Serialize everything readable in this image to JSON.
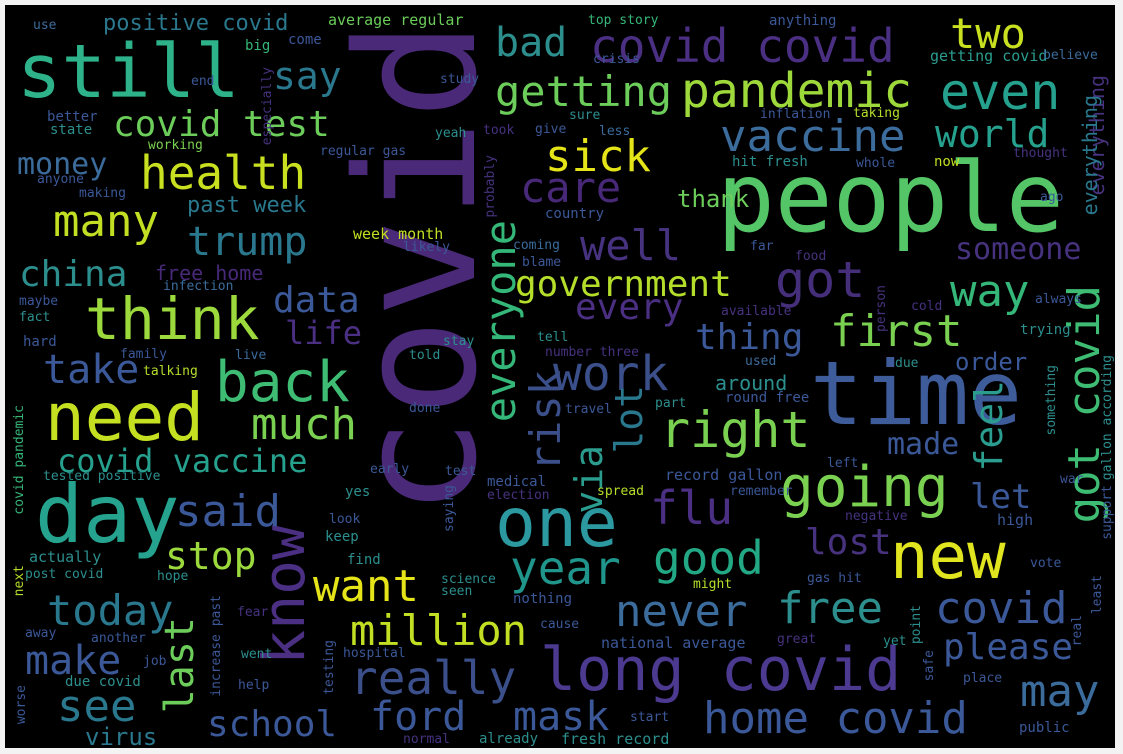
{
  "colors": {
    "background": "#000000",
    "purple_dark": "#46266b",
    "purple": "#5b3b8b",
    "indigo": "#3f4e8c",
    "slate": "#3b6c8f",
    "teal": "#2c8f8e",
    "green_teal": "#27a27e",
    "green": "#48c06a",
    "light_green": "#7ed34e",
    "yellow": "#d8e219"
  },
  "words": [
    {
      "text": "covid",
      "color": "#4a2a78"
    },
    {
      "text": "people",
      "color": "#55c667"
    },
    {
      "text": "time",
      "color": "#3e5b9a"
    },
    {
      "text": "still",
      "color": "#2db28a"
    },
    {
      "text": "day",
      "color": "#25a38f"
    },
    {
      "text": "need",
      "color": "#c5e021"
    },
    {
      "text": "new",
      "color": "#e0e51f"
    },
    {
      "text": "one",
      "color": "#2c99a1"
    },
    {
      "text": "know",
      "color": "#4b2f83"
    },
    {
      "text": "long covid",
      "color": "#4b3a8f"
    },
    {
      "text": "going",
      "color": "#7ad151"
    },
    {
      "text": "think",
      "color": "#9bd93c"
    },
    {
      "text": "back",
      "color": "#3ebc74"
    },
    {
      "text": "really",
      "color": "#3b4f8a"
    },
    {
      "text": "home covid",
      "color": "#3b5898"
    },
    {
      "text": "pandemic",
      "color": "#9dd93b"
    },
    {
      "text": "covid covid",
      "color": "#4b2f83"
    },
    {
      "text": "health",
      "color": "#c8e020"
    },
    {
      "text": "vaccine",
      "color": "#3b6c9c"
    },
    {
      "text": "even",
      "color": "#25a18e"
    },
    {
      "text": "right",
      "color": "#7ad151"
    },
    {
      "text": "work",
      "color": "#3b4f8a"
    },
    {
      "text": "year",
      "color": "#1f958b"
    },
    {
      "text": "good",
      "color": "#22a884"
    },
    {
      "text": "free",
      "color": "#2c8f8e"
    },
    {
      "text": "never",
      "color": "#3b6c9c"
    },
    {
      "text": "covid",
      "color": "#3b5898"
    },
    {
      "text": "may",
      "color": "#3b6c9c"
    },
    {
      "text": "please",
      "color": "#3b5898"
    },
    {
      "text": "got covid",
      "color": "#3ebc74"
    },
    {
      "text": "got",
      "color": "#452f7a"
    },
    {
      "text": "first",
      "color": "#7ad151"
    },
    {
      "text": "way",
      "color": "#35b779"
    },
    {
      "text": "government",
      "color": "#b5de2b"
    },
    {
      "text": "getting",
      "color": "#6ccd5a"
    },
    {
      "text": "bad",
      "color": "#2c8f8e"
    },
    {
      "text": "sick",
      "color": "#e5e419"
    },
    {
      "text": "care",
      "color": "#482878"
    },
    {
      "text": "well",
      "color": "#46327e"
    },
    {
      "text": "covid test",
      "color": "#6ccd5a"
    },
    {
      "text": "say",
      "color": "#2a788e"
    },
    {
      "text": "many",
      "color": "#c2df23"
    },
    {
      "text": "trump",
      "color": "#2a788e"
    },
    {
      "text": "china",
      "color": "#2c8f8e"
    },
    {
      "text": "money",
      "color": "#3b6c9c"
    },
    {
      "text": "data",
      "color": "#3b5898"
    },
    {
      "text": "life",
      "color": "#4b2f83"
    },
    {
      "text": "much",
      "color": "#7ad151"
    },
    {
      "text": "said",
      "color": "#3b5898"
    },
    {
      "text": "take",
      "color": "#3b5898"
    },
    {
      "text": "covid vaccine",
      "color": "#25a18e"
    },
    {
      "text": "stop",
      "color": "#9bd93c"
    },
    {
      "text": "want",
      "color": "#e5e419"
    },
    {
      "text": "million",
      "color": "#c2df23"
    },
    {
      "text": "today",
      "color": "#2a788e"
    },
    {
      "text": "make",
      "color": "#3b5898"
    },
    {
      "text": "see",
      "color": "#2a788e"
    },
    {
      "text": "school",
      "color": "#3b5898"
    },
    {
      "text": "ford",
      "color": "#3b5898"
    },
    {
      "text": "mask",
      "color": "#3b5898"
    },
    {
      "text": "last",
      "color": "#6ccd5a"
    },
    {
      "text": "virus",
      "color": "#2a788e"
    },
    {
      "text": "everyone",
      "color": "#35b779"
    },
    {
      "text": "risk",
      "color": "#3b4f8a"
    },
    {
      "text": "via",
      "color": "#2a9d8f"
    },
    {
      "text": "lot",
      "color": "#2a788e"
    },
    {
      "text": "every",
      "color": "#4b2f83"
    },
    {
      "text": "flu",
      "color": "#4b2f83"
    },
    {
      "text": "lost",
      "color": "#46327e"
    },
    {
      "text": "thing",
      "color": "#3b5898"
    },
    {
      "text": "made",
      "color": "#3b5898"
    },
    {
      "text": "feel",
      "color": "#2a9d8f"
    },
    {
      "text": "let",
      "color": "#3b5898"
    },
    {
      "text": "two",
      "color": "#c8e020"
    },
    {
      "text": "world",
      "color": "#25a18e"
    },
    {
      "text": "someone",
      "color": "#46327e"
    },
    {
      "text": "thank",
      "color": "#6ccd5a"
    },
    {
      "text": "order",
      "color": "#3b5898"
    },
    {
      "text": "around",
      "color": "#2c8f8e"
    },
    {
      "text": "positive covid",
      "color": "#2a788e"
    },
    {
      "text": "past week",
      "color": "#2a788e"
    },
    {
      "text": "free home",
      "color": "#482878"
    },
    {
      "text": "week month",
      "color": "#c2df23"
    },
    {
      "text": "covid",
      "color": "#3b4f8a"
    },
    {
      "text": "everything",
      "color": "#2a788e"
    },
    {
      "text": "everything",
      "color": "#46327e"
    }
  ],
  "small_words": [
    "use",
    "average regular",
    "top story",
    "anything",
    "big",
    "come",
    "getting covid",
    "end",
    "crisis",
    "study",
    "believe",
    "better",
    "state",
    "especially",
    "working",
    "inflation",
    "taking",
    "sure",
    "yeah",
    "took",
    "give",
    "less",
    "anyone",
    "making",
    "regular gas",
    "probably",
    "hit fresh",
    "whole",
    "now",
    "thought",
    "ago",
    "country",
    "coming",
    "blame",
    "likely",
    "far",
    "food",
    "always",
    "infection",
    "maybe",
    "fact",
    "available",
    "person",
    "cold",
    "hard",
    "family",
    "live",
    "told",
    "stay",
    "tell",
    "number three",
    "used",
    "trying",
    "due",
    "talking",
    "done",
    "travel",
    "part",
    "round free",
    "something",
    "covid pandemic",
    "early",
    "test",
    "medical",
    "record gallon",
    "left",
    "gallon according",
    "tested positive",
    "election",
    "spread",
    "remember",
    "war",
    "support",
    "yes",
    "saying",
    "look",
    "keep",
    "negative",
    "high",
    "find",
    "science",
    "seen",
    "vote",
    "real",
    "least",
    "actually",
    "next",
    "post covid",
    "hope",
    "increase past",
    "nothing",
    "might",
    "gas hit",
    "fear",
    "cause",
    "point",
    "away",
    "another",
    "job",
    "went",
    "testing",
    "hospital",
    "national average",
    "great",
    "yet",
    "safe",
    "place",
    "worse",
    "due covid",
    "help",
    "public",
    "start",
    "normal",
    "already",
    "fresh record"
  ]
}
